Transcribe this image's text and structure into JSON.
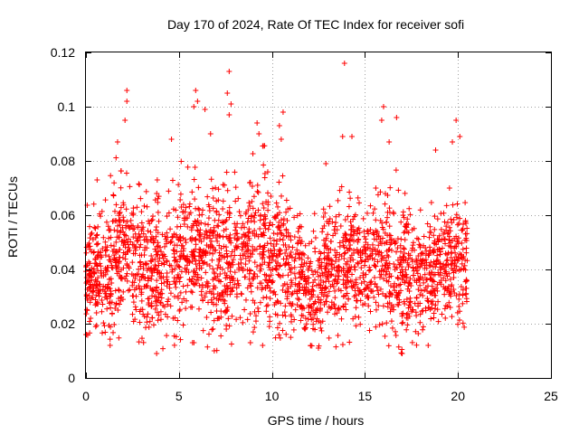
{
  "chart_data": {
    "type": "scatter",
    "title": "Day 170 of 2024, Rate Of TEC Index for receiver sofi",
    "xlabel": "GPS time / hours",
    "ylabel": "ROTI / TECUs",
    "xlim": [
      0,
      25
    ],
    "ylim": [
      0,
      0.12
    ],
    "x_ticks": [
      0,
      5,
      10,
      15,
      20,
      25
    ],
    "x_tick_labels": [
      "0",
      "5",
      "10",
      "15",
      "20",
      "25"
    ],
    "y_ticks": [
      0,
      0.02,
      0.04,
      0.06,
      0.08,
      0.1,
      0.12
    ],
    "y_tick_labels": [
      "0",
      "0.02",
      "0.04",
      "0.06",
      "0.08",
      "0.1",
      "0.12"
    ],
    "grid": true,
    "marker": "+",
    "series": [
      {
        "name": "ROTI",
        "color": "#ff0000",
        "x_range": [
          0,
          20.5
        ],
        "typical_range": [
          0.02,
          0.06
        ],
        "envelope": [
          {
            "x": 0.0,
            "low": 0.016,
            "high": 0.068
          },
          {
            "x": 1.0,
            "low": 0.014,
            "high": 0.07
          },
          {
            "x": 2.0,
            "low": 0.015,
            "high": 0.088
          },
          {
            "x": 3.0,
            "low": 0.013,
            "high": 0.078
          },
          {
            "x": 4.0,
            "low": 0.009,
            "high": 0.072
          },
          {
            "x": 5.0,
            "low": 0.013,
            "high": 0.084
          },
          {
            "x": 6.0,
            "low": 0.013,
            "high": 0.083
          },
          {
            "x": 7.0,
            "low": 0.01,
            "high": 0.077
          },
          {
            "x": 8.0,
            "low": 0.013,
            "high": 0.078
          },
          {
            "x": 9.0,
            "low": 0.013,
            "high": 0.085
          },
          {
            "x": 10.0,
            "low": 0.012,
            "high": 0.086
          },
          {
            "x": 11.0,
            "low": 0.015,
            "high": 0.073
          },
          {
            "x": 12.0,
            "low": 0.012,
            "high": 0.062
          },
          {
            "x": 13.0,
            "low": 0.011,
            "high": 0.072
          },
          {
            "x": 14.0,
            "low": 0.012,
            "high": 0.074
          },
          {
            "x": 15.0,
            "low": 0.019,
            "high": 0.07
          },
          {
            "x": 16.0,
            "low": 0.013,
            "high": 0.08
          },
          {
            "x": 17.0,
            "low": 0.009,
            "high": 0.075
          },
          {
            "x": 18.0,
            "low": 0.013,
            "high": 0.067
          },
          {
            "x": 19.0,
            "low": 0.016,
            "high": 0.07
          },
          {
            "x": 20.0,
            "low": 0.016,
            "high": 0.074
          },
          {
            "x": 20.5,
            "low": 0.02,
            "high": 0.077
          }
        ],
        "spikes": [
          {
            "x": 2.2,
            "y": 0.106
          },
          {
            "x": 2.2,
            "y": 0.102
          },
          {
            "x": 2.1,
            "y": 0.095
          },
          {
            "x": 1.7,
            "y": 0.087
          },
          {
            "x": 4.6,
            "y": 0.088
          },
          {
            "x": 5.9,
            "y": 0.106
          },
          {
            "x": 6.0,
            "y": 0.102
          },
          {
            "x": 5.8,
            "y": 0.1
          },
          {
            "x": 6.4,
            "y": 0.099
          },
          {
            "x": 6.7,
            "y": 0.09
          },
          {
            "x": 7.7,
            "y": 0.113
          },
          {
            "x": 7.6,
            "y": 0.105
          },
          {
            "x": 7.8,
            "y": 0.101
          },
          {
            "x": 7.7,
            "y": 0.097
          },
          {
            "x": 9.2,
            "y": 0.094
          },
          {
            "x": 9.3,
            "y": 0.09
          },
          {
            "x": 10.6,
            "y": 0.098
          },
          {
            "x": 10.4,
            "y": 0.093
          },
          {
            "x": 10.5,
            "y": 0.088
          },
          {
            "x": 13.9,
            "y": 0.116
          },
          {
            "x": 13.8,
            "y": 0.089
          },
          {
            "x": 14.3,
            "y": 0.089
          },
          {
            "x": 12.9,
            "y": 0.079
          },
          {
            "x": 16.0,
            "y": 0.1
          },
          {
            "x": 15.9,
            "y": 0.095
          },
          {
            "x": 16.7,
            "y": 0.096
          },
          {
            "x": 16.3,
            "y": 0.087
          },
          {
            "x": 19.9,
            "y": 0.095
          },
          {
            "x": 20.1,
            "y": 0.089
          },
          {
            "x": 19.7,
            "y": 0.087
          },
          {
            "x": 18.8,
            "y": 0.084
          },
          {
            "x": 0.6,
            "y": 0.073
          },
          {
            "x": 17.0,
            "y": 0.009
          },
          {
            "x": 3.8,
            "y": 0.009
          },
          {
            "x": 6.9,
            "y": 0.01
          },
          {
            "x": 1.3,
            "y": 0.012
          },
          {
            "x": 9.5,
            "y": 0.012
          },
          {
            "x": 12.5,
            "y": 0.011
          },
          {
            "x": 18.4,
            "y": 0.012
          }
        ]
      }
    ]
  }
}
